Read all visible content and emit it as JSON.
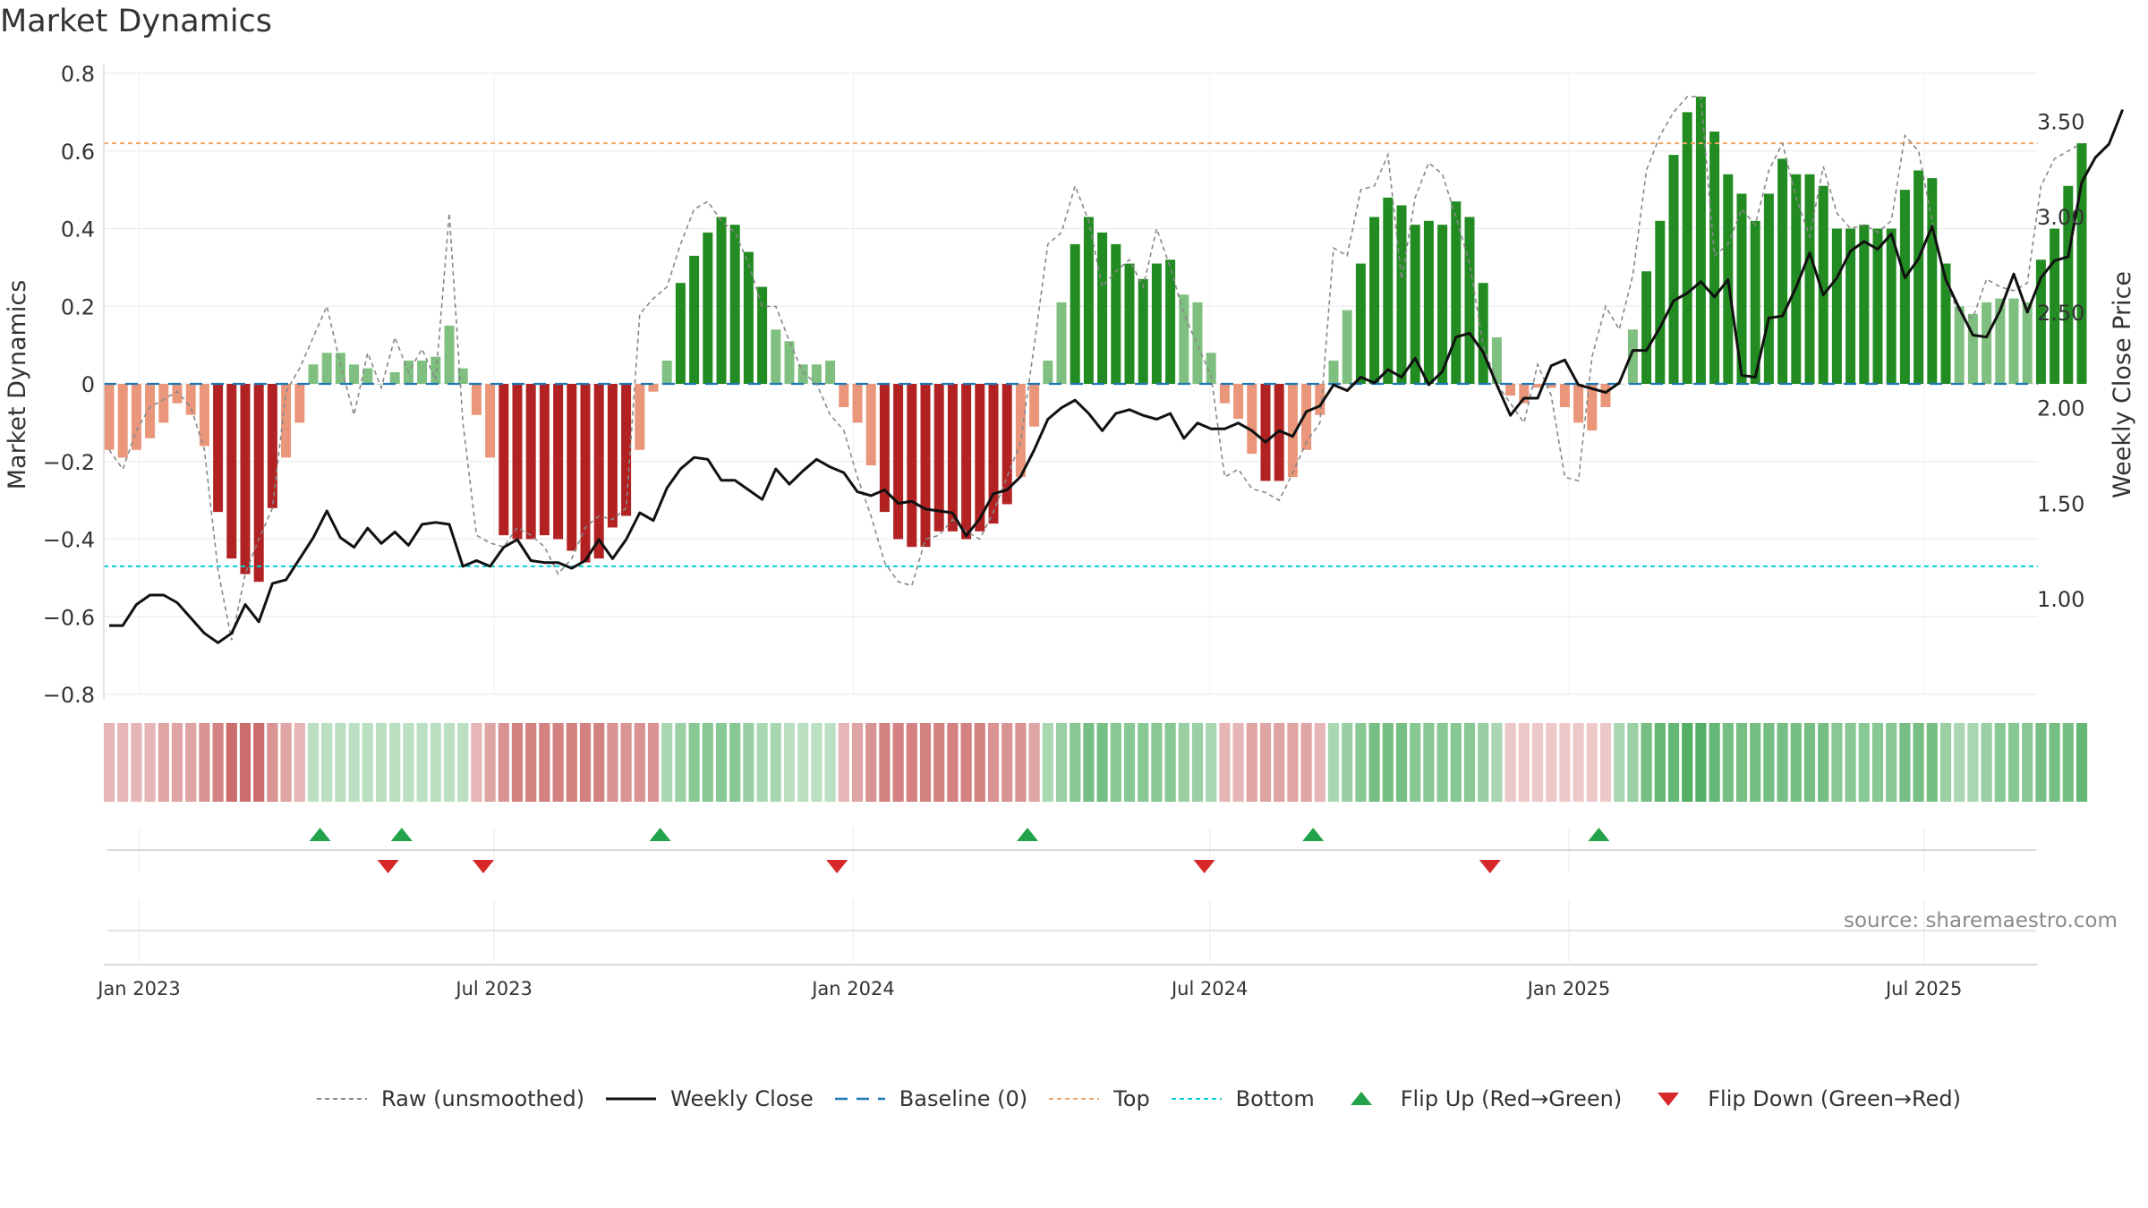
{
  "chart_data": {
    "type": "bar",
    "title": "Market Dynamics",
    "ylabel_left": "Market Dynamics",
    "ylabel_right": "Weekly Close Price",
    "source": "source: sharemaestro.com",
    "ylim_left": [
      -0.8,
      0.8
    ],
    "ylim_right": [
      0.5,
      3.75
    ],
    "left_ticks": [
      "0.8",
      "0.6",
      "0.4",
      "0.2",
      "0",
      "−0.2",
      "−0.4",
      "−0.6",
      "−0.8"
    ],
    "left_tick_values": [
      0.8,
      0.6,
      0.4,
      0.2,
      0,
      -0.2,
      -0.4,
      -0.6,
      -0.8
    ],
    "right_ticks": [
      "3.50",
      "3.00",
      "2.50",
      "2.00",
      "1.50",
      "1.00"
    ],
    "right_tick_values": [
      3.5,
      3.0,
      2.5,
      2.0,
      1.5,
      1.0
    ],
    "x_ticks": [
      "Jan 2023",
      "Jul 2023",
      "Jan 2024",
      "Jul 2024",
      "Jan 2025",
      "Jul 2025"
    ],
    "x_tick_weeks": [
      2.2,
      28.3,
      54.7,
      80.9,
      107.3,
      133.4
    ],
    "top_line": 0.62,
    "bottom_line": -0.47,
    "colors": {
      "strong_green": "#228b22",
      "light_green": "#7fbf7f",
      "strong_red": "#b22222",
      "light_red": "#e9967a",
      "top": "#f4a460",
      "bottom": "#00ced1",
      "baseline": "#1f77b4",
      "close": "#111111",
      "raw": "#888888",
      "flip_up": "#22a34a",
      "flip_down": "#d62828"
    },
    "bars": [
      -0.17,
      -0.19,
      -0.17,
      -0.14,
      -0.1,
      -0.05,
      -0.08,
      -0.16,
      -0.33,
      -0.45,
      -0.49,
      -0.51,
      -0.32,
      -0.19,
      -0.1,
      0.05,
      0.08,
      0.08,
      0.05,
      0.04,
      0.0,
      0.03,
      0.06,
      0.06,
      0.07,
      0.15,
      0.04,
      -0.08,
      -0.19,
      -0.39,
      -0.4,
      -0.4,
      -0.39,
      -0.4,
      -0.43,
      -0.46,
      -0.45,
      -0.37,
      -0.34,
      -0.17,
      -0.02,
      0.06,
      0.26,
      0.33,
      0.39,
      0.43,
      0.41,
      0.34,
      0.25,
      0.14,
      0.11,
      0.05,
      0.05,
      0.06,
      -0.06,
      -0.1,
      -0.21,
      -0.33,
      -0.4,
      -0.42,
      -0.42,
      -0.38,
      -0.38,
      -0.4,
      -0.38,
      -0.36,
      -0.31,
      -0.24,
      -0.11,
      0.06,
      0.21,
      0.36,
      0.43,
      0.39,
      0.36,
      0.31,
      0.27,
      0.31,
      0.32,
      0.23,
      0.21,
      0.08,
      -0.05,
      -0.09,
      -0.18,
      -0.25,
      -0.25,
      -0.24,
      -0.17,
      -0.08,
      0.06,
      0.19,
      0.31,
      0.43,
      0.48,
      0.46,
      0.41,
      0.42,
      0.41,
      0.47,
      0.43,
      0.26,
      0.12,
      -0.03,
      -0.05,
      -0.01,
      -0.01,
      -0.06,
      -0.1,
      -0.12,
      -0.06,
      0.0,
      0.14,
      0.29,
      0.42,
      0.59,
      0.7,
      0.74,
      0.65,
      0.54,
      0.49,
      0.42,
      0.49,
      0.58,
      0.54,
      0.54,
      0.51,
      0.4,
      0.4,
      0.41,
      0.4,
      0.4,
      0.5,
      0.55,
      0.53,
      0.31,
      0.2,
      0.18,
      0.21,
      0.22,
      0.22,
      0.21,
      0.32,
      0.4,
      0.51,
      0.62
    ],
    "raw": [
      -0.17,
      -0.22,
      -0.12,
      -0.06,
      -0.04,
      -0.02,
      -0.06,
      -0.17,
      -0.48,
      -0.66,
      -0.49,
      -0.4,
      -0.32,
      -0.02,
      0.04,
      0.12,
      0.2,
      0.05,
      -0.08,
      0.08,
      -0.01,
      0.12,
      0.03,
      0.09,
      0.01,
      0.44,
      -0.1,
      -0.39,
      -0.41,
      -0.42,
      -0.37,
      -0.39,
      -0.42,
      -0.49,
      -0.45,
      -0.37,
      -0.34,
      -0.35,
      -0.32,
      0.18,
      0.22,
      0.25,
      0.36,
      0.45,
      0.47,
      0.42,
      0.39,
      0.31,
      0.2,
      0.2,
      0.11,
      0.03,
      0.0,
      -0.08,
      -0.12,
      -0.24,
      -0.34,
      -0.46,
      -0.51,
      -0.52,
      -0.4,
      -0.39,
      -0.35,
      -0.38,
      -0.4,
      -0.33,
      -0.24,
      -0.15,
      0.1,
      0.36,
      0.39,
      0.51,
      0.42,
      0.25,
      0.29,
      0.32,
      0.25,
      0.4,
      0.3,
      0.18,
      0.1,
      0.02,
      -0.24,
      -0.22,
      -0.27,
      -0.28,
      -0.3,
      -0.23,
      -0.15,
      -0.1,
      0.35,
      0.33,
      0.5,
      0.51,
      0.59,
      0.27,
      0.48,
      0.57,
      0.54,
      0.43,
      0.31,
      0.1,
      0.0,
      -0.05,
      -0.1,
      0.05,
      -0.03,
      -0.24,
      -0.25,
      0.07,
      0.2,
      0.14,
      0.28,
      0.55,
      0.64,
      0.7,
      0.74,
      0.74,
      0.33,
      0.36,
      0.45,
      0.41,
      0.55,
      0.62,
      0.48,
      0.38,
      0.56,
      0.44,
      0.4,
      0.41,
      0.39,
      0.42,
      0.64,
      0.6,
      0.42,
      0.26,
      0.18,
      0.17,
      0.27,
      0.25,
      0.24,
      0.26,
      0.51,
      0.58,
      0.6,
      0.62
    ],
    "close": [
      0.86,
      0.86,
      0.97,
      1.02,
      1.02,
      0.98,
      0.9,
      0.82,
      0.77,
      0.82,
      0.97,
      0.88,
      1.08,
      1.1,
      1.21,
      1.32,
      1.46,
      1.32,
      1.27,
      1.37,
      1.29,
      1.35,
      1.28,
      1.39,
      1.4,
      1.39,
      1.17,
      1.2,
      1.17,
      1.27,
      1.31,
      1.2,
      1.19,
      1.19,
      1.16,
      1.2,
      1.31,
      1.21,
      1.31,
      1.45,
      1.41,
      1.58,
      1.68,
      1.74,
      1.73,
      1.62,
      1.62,
      1.57,
      1.52,
      1.68,
      1.6,
      1.67,
      1.73,
      1.69,
      1.66,
      1.56,
      1.54,
      1.57,
      1.5,
      1.51,
      1.47,
      1.46,
      1.45,
      1.33,
      1.42,
      1.55,
      1.57,
      1.64,
      1.78,
      1.94,
      2.0,
      2.04,
      1.97,
      1.88,
      1.97,
      1.99,
      1.96,
      1.94,
      1.97,
      1.84,
      1.92,
      1.89,
      1.89,
      1.92,
      1.88,
      1.82,
      1.88,
      1.85,
      1.98,
      2.01,
      2.12,
      2.09,
      2.16,
      2.13,
      2.2,
      2.16,
      2.26,
      2.12,
      2.19,
      2.37,
      2.39,
      2.29,
      2.12,
      1.96,
      2.05,
      2.05,
      2.22,
      2.25,
      2.12,
      2.1,
      2.08,
      2.13,
      2.3,
      2.3,
      2.42,
      2.56,
      2.6,
      2.66,
      2.58,
      2.67,
      2.17,
      2.16,
      2.47,
      2.48,
      2.63,
      2.81,
      2.59,
      2.68,
      2.82,
      2.87,
      2.83,
      2.91,
      2.68,
      2.78,
      2.95,
      2.67,
      2.52,
      2.38,
      2.37,
      2.51,
      2.7,
      2.5,
      2.68,
      2.77,
      2.79,
      3.18,
      3.31,
      3.38,
      3.56
    ],
    "regime_strength": [
      0.4,
      0.4,
      0.4,
      0.4,
      0.5,
      0.5,
      0.5,
      0.6,
      0.7,
      0.8,
      0.8,
      0.8,
      0.6,
      0.5,
      0.4,
      0.4,
      0.4,
      0.4,
      0.4,
      0.4,
      0.4,
      0.4,
      0.4,
      0.4,
      0.4,
      0.4,
      0.4,
      0.4,
      0.5,
      0.6,
      0.7,
      0.7,
      0.7,
      0.7,
      0.7,
      0.7,
      0.7,
      0.6,
      0.6,
      0.6,
      0.6,
      0.5,
      0.6,
      0.7,
      0.7,
      0.7,
      0.7,
      0.6,
      0.5,
      0.5,
      0.4,
      0.4,
      0.4,
      0.4,
      0.4,
      0.5,
      0.6,
      0.7,
      0.7,
      0.7,
      0.7,
      0.7,
      0.7,
      0.7,
      0.7,
      0.6,
      0.6,
      0.6,
      0.5,
      0.5,
      0.6,
      0.7,
      0.8,
      0.8,
      0.7,
      0.7,
      0.7,
      0.7,
      0.7,
      0.6,
      0.6,
      0.5,
      0.4,
      0.4,
      0.5,
      0.5,
      0.5,
      0.5,
      0.5,
      0.4,
      0.5,
      0.6,
      0.7,
      0.8,
      0.8,
      0.8,
      0.7,
      0.7,
      0.7,
      0.7,
      0.7,
      0.6,
      0.5,
      0.3,
      0.3,
      0.3,
      0.3,
      0.3,
      0.3,
      0.3,
      0.3,
      0.5,
      0.6,
      0.8,
      0.9,
      0.9,
      1.0,
      1.0,
      0.9,
      0.8,
      0.8,
      0.8,
      0.8,
      0.8,
      0.8,
      0.8,
      0.8,
      0.7,
      0.7,
      0.7,
      0.7,
      0.7,
      0.8,
      0.8,
      0.8,
      0.6,
      0.5,
      0.5,
      0.6,
      0.7,
      0.7,
      0.7,
      0.8,
      0.8,
      0.8,
      0.9
    ],
    "flip_up_weeks": [
      15.5,
      21.5,
      40.5,
      67.5,
      88.5,
      109.5
    ],
    "flip_down_weeks": [
      20.5,
      27.5,
      53.5,
      80.5,
      101.5
    ],
    "legend": [
      {
        "key": "raw",
        "label": "Raw (unsmoothed)"
      },
      {
        "key": "close",
        "label": "Weekly Close"
      },
      {
        "key": "baseline",
        "label": "Baseline (0)"
      },
      {
        "key": "top",
        "label": "Top"
      },
      {
        "key": "bottom",
        "label": "Bottom"
      },
      {
        "key": "flip_up",
        "label": "Flip Up (Red→Green)"
      },
      {
        "key": "flip_down",
        "label": "Flip Down (Green→Red)"
      }
    ]
  }
}
